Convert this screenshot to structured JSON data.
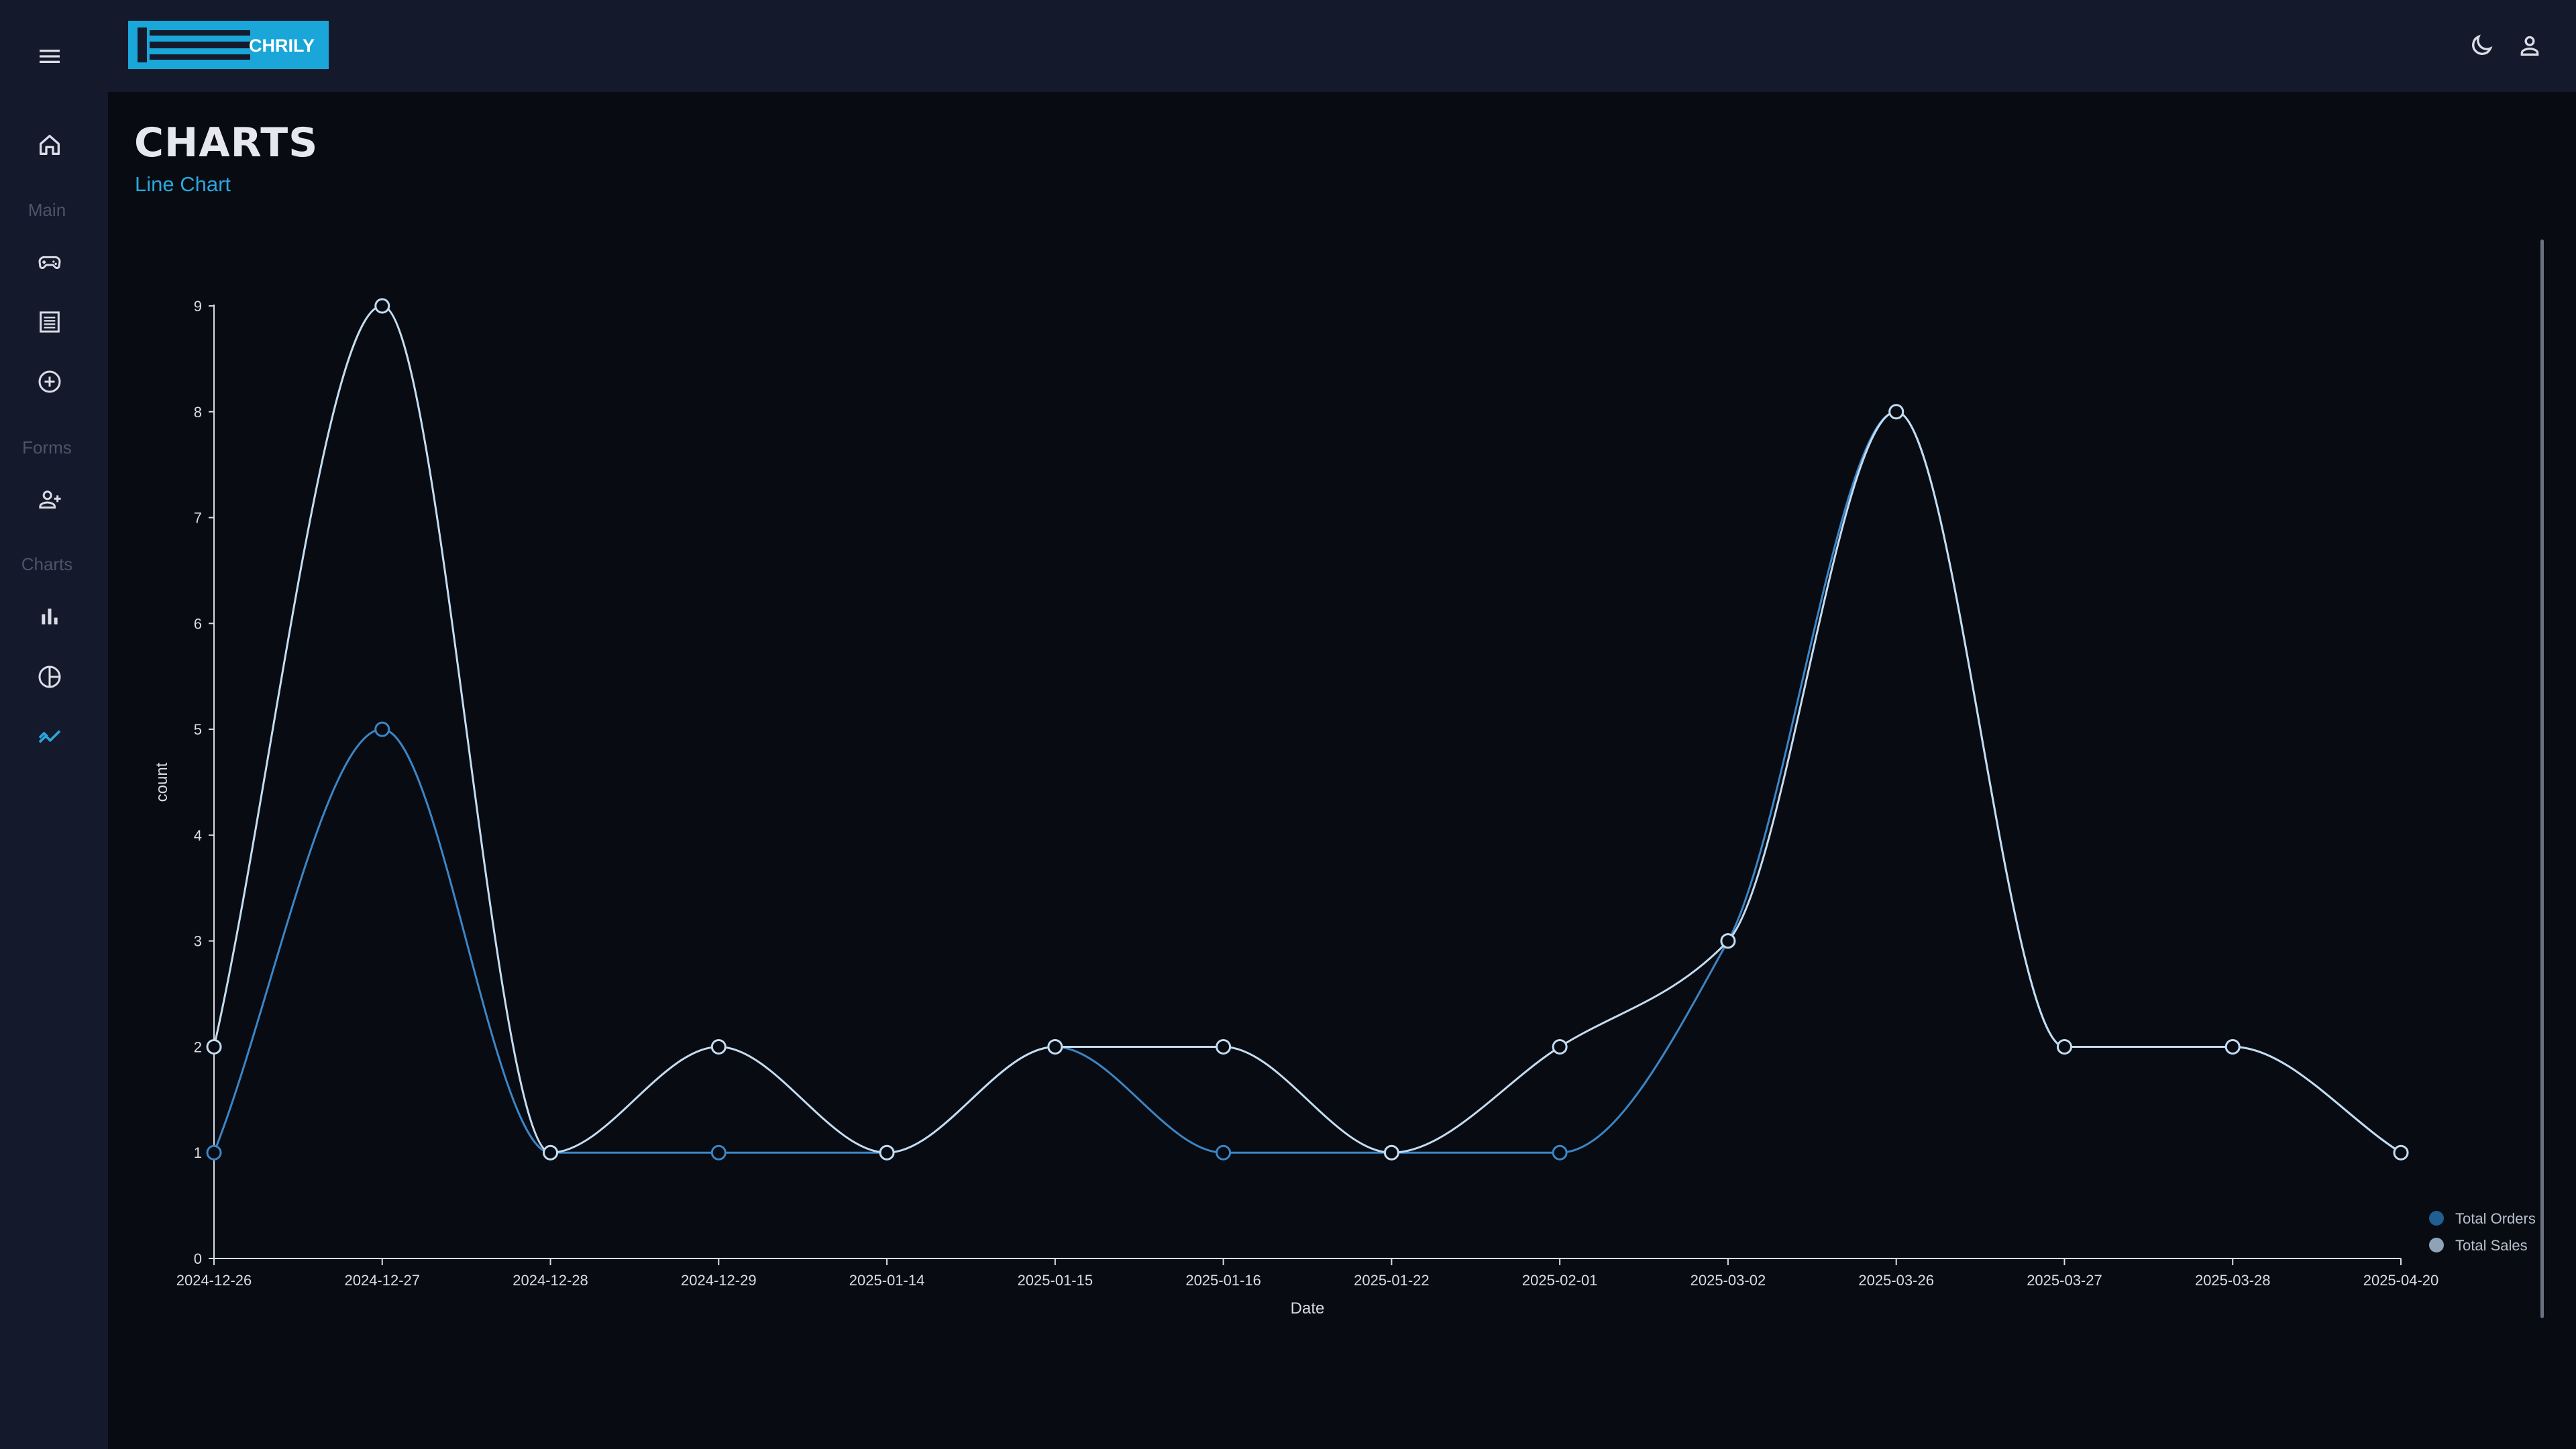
{
  "header": {
    "logo_text": "CHRILY",
    "menu_icon": "hamburger-menu-icon",
    "theme_icon": "moon-icon",
    "profile_icon": "person-icon"
  },
  "sidebar": {
    "items": [
      {
        "section": null,
        "icon": "home-icon",
        "active": false
      },
      {
        "section": "Main",
        "icon": "gamepad-icon",
        "active": false
      },
      {
        "section": null,
        "icon": "list-icon",
        "active": false
      },
      {
        "section": null,
        "icon": "add-circle-icon",
        "active": false
      },
      {
        "section": "Forms",
        "icon": "person-add-icon",
        "active": false
      },
      {
        "section": "Charts",
        "icon": "bar-chart-icon",
        "active": false
      },
      {
        "section": null,
        "icon": "pie-chart-icon",
        "active": false
      },
      {
        "section": null,
        "icon": "line-chart-icon",
        "active": true
      }
    ],
    "sections": {
      "main": "Main",
      "forms": "Forms",
      "charts": "Charts"
    }
  },
  "page": {
    "title": "CHARTS",
    "subtitle": "Line Chart"
  },
  "colors": {
    "accent": "#2aa7dc",
    "orders_line": "#3b86c6",
    "sales_line": "#c4dcf0",
    "axis": "#d8dde6",
    "background": "#080b12",
    "panel": "#141a2b"
  },
  "chart_data": {
    "type": "line",
    "xlabel": "Date",
    "ylabel": "count",
    "ylim": [
      0,
      9
    ],
    "yticks": [
      0,
      1,
      2,
      3,
      4,
      5,
      6,
      7,
      8,
      9
    ],
    "categories": [
      "2024-12-26",
      "2024-12-27",
      "2024-12-28",
      "2024-12-29",
      "2025-01-14",
      "2025-01-15",
      "2025-01-16",
      "2025-01-22",
      "2025-02-01",
      "2025-03-02",
      "2025-03-26",
      "2025-03-27",
      "2025-03-28",
      "2025-04-20"
    ],
    "series": [
      {
        "name": "Total Orders",
        "color": "#3b86c6",
        "values": [
          1,
          5,
          1,
          1,
          1,
          2,
          1,
          1,
          1,
          3,
          8,
          2,
          2,
          1
        ]
      },
      {
        "name": "Total Sales",
        "color": "#c4dcf0",
        "values": [
          2,
          9,
          1,
          2,
          1,
          2,
          2,
          1,
          2,
          3,
          8,
          2,
          2,
          1
        ]
      }
    ],
    "legend_position": "bottom-right",
    "grid": false
  }
}
